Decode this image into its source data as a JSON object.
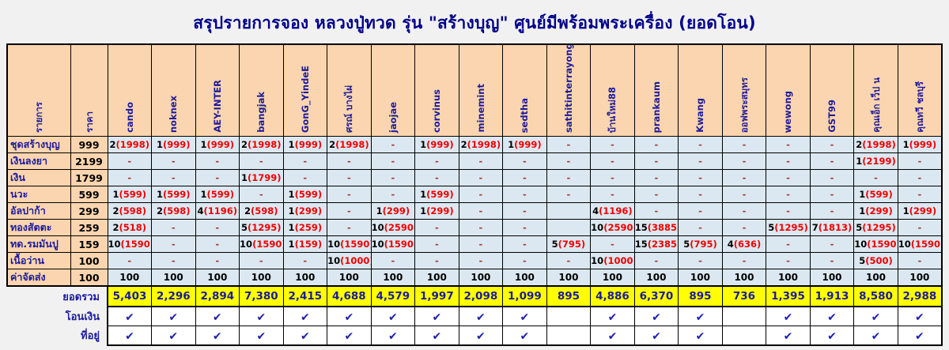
{
  "title": "สรุปรายการจอง หลวงปู่ทวด รุ่น \"สร้างบุญ\" ศูนย์มีพร้อมพระเครื่อง (ยอดโอน)",
  "colors": {
    "page_bg": "#F1F1F1",
    "title_color": "#00008B",
    "header_bg": "#FBD5AF",
    "cell_bg": "#DBE8F1",
    "total_bg": "#FFFF00",
    "navy": "#1B1B9B",
    "value_red": "#F20000",
    "dash_maroon": "#A03B3B",
    "check_blue": "#2020B0"
  },
  "table": {
    "corner_headers": [
      "รายการ",
      "ราคา"
    ],
    "columns": [
      "cando",
      "noknex",
      "AEY-INTER",
      "bangjak",
      "GonG_YindeE",
      "ศรณ์ บางไผ่",
      "jaojae",
      "corvinus",
      "minemint",
      "sedtha",
      "sathitinterrayong",
      "บ้านใหม่88",
      "prankaum",
      "Kwang",
      "ออฟพระสมุทร",
      "wewong",
      "GST99",
      "คุณเอ็ก เว็ป น",
      "คุณทวี ชลบุรี"
    ],
    "rows": [
      {
        "name": "ชุดสร้างบุญ",
        "price": "999",
        "cells": [
          "2(1998)",
          "1(999)",
          "1(999)",
          "2(1998)",
          "1(999)",
          "2(1998)",
          "-",
          "1(999)",
          "2(1998)",
          "1(999)",
          "-",
          "-",
          "-",
          "-",
          "-",
          "-",
          "-",
          "2(1998)",
          "1(999)"
        ]
      },
      {
        "name": "เงินลงยา",
        "price": "2199",
        "cells": [
          "-",
          "-",
          "-",
          "-",
          "-",
          "-",
          "-",
          "-",
          "-",
          "-",
          "-",
          "-",
          "-",
          "-",
          "-",
          "-",
          "-",
          "1(2199)",
          "-"
        ]
      },
      {
        "name": "เงิน",
        "price": "1799",
        "cells": [
          "-",
          "-",
          "-",
          "1(1799)",
          "-",
          "-",
          "-",
          "-",
          "-",
          "-",
          "-",
          "-",
          "-",
          "-",
          "-",
          "-",
          "-",
          "-",
          "-"
        ]
      },
      {
        "name": "นวะ",
        "price": "599",
        "cells": [
          "1(599)",
          "1(599)",
          "1(599)",
          "-",
          "1(599)",
          "-",
          "-",
          "1(599)",
          "-",
          "-",
          "-",
          "-",
          "-",
          "-",
          "-",
          "-",
          "-",
          "1(599)",
          "-"
        ]
      },
      {
        "name": "อัลปาก้า",
        "price": "299",
        "cells": [
          "2(598)",
          "2(598)",
          "4(1196)",
          "2(598)",
          "1(299)",
          "-",
          "1(299)",
          "1(299)",
          "-",
          "-",
          "",
          "4(1196)",
          "-",
          "-",
          "-",
          "-",
          "-",
          "1(299)",
          "1(299)"
        ]
      },
      {
        "name": "ทองสัตตะ",
        "price": "259",
        "cells": [
          "2(518)",
          "-",
          "-",
          "5(1295)",
          "1(259)",
          "-",
          "10(2590)",
          "-",
          "-",
          "-",
          "",
          "10(2590)",
          "15(3885)",
          "-",
          "-",
          "5(1295)",
          "7(1813)",
          "5(1295)",
          "-"
        ]
      },
      {
        "name": "ทด.รมมันปู",
        "price": "159",
        "cells": [
          "10(1590)",
          "-",
          "-",
          "10(1590)",
          "1(159)",
          "10(1590)",
          "10(1590)",
          "-",
          "-",
          "-",
          "5(795)",
          "-",
          "15(2385)",
          "5(795)",
          "4(636)",
          "-",
          "-",
          "10(1590)",
          "10(1590)"
        ]
      },
      {
        "name": "เนื้อว่าน",
        "price": "100",
        "cells": [
          "-",
          "-",
          "-",
          "-",
          "-",
          "10(1000)",
          "-",
          "-",
          "-",
          "-",
          "-",
          "10(1000)",
          "-",
          "-",
          "-",
          "-",
          "-",
          "5(500)",
          "-"
        ]
      },
      {
        "name": "ค่าจัดส่ง",
        "price": "100",
        "cells": [
          "100",
          "100",
          "100",
          "100",
          "100",
          "100",
          "100",
          "100",
          "100",
          "100",
          "100",
          "100",
          "100",
          "100",
          "100",
          "100",
          "100",
          "100",
          "100"
        ]
      }
    ],
    "total_row": {
      "label": "ยอดรวม",
      "values": [
        "5,403",
        "2,296",
        "2,894",
        "7,380",
        "2,415",
        "4,688",
        "4,579",
        "1,997",
        "2,098",
        "1,099",
        "895",
        "4,886",
        "6,370",
        "895",
        "736",
        "1,395",
        "1,913",
        "8,580",
        "2,988"
      ]
    },
    "check_rows": [
      {
        "label": "โอนเงิน",
        "checks": [
          true,
          true,
          true,
          true,
          true,
          true,
          true,
          true,
          true,
          true,
          false,
          true,
          true,
          true,
          false,
          true,
          true,
          true,
          true
        ]
      },
      {
        "label": "ที่อยู่",
        "checks": [
          true,
          true,
          true,
          true,
          true,
          true,
          true,
          true,
          true,
          true,
          false,
          true,
          true,
          true,
          false,
          true,
          true,
          true,
          true
        ]
      }
    ],
    "check_glyph": "✔"
  }
}
